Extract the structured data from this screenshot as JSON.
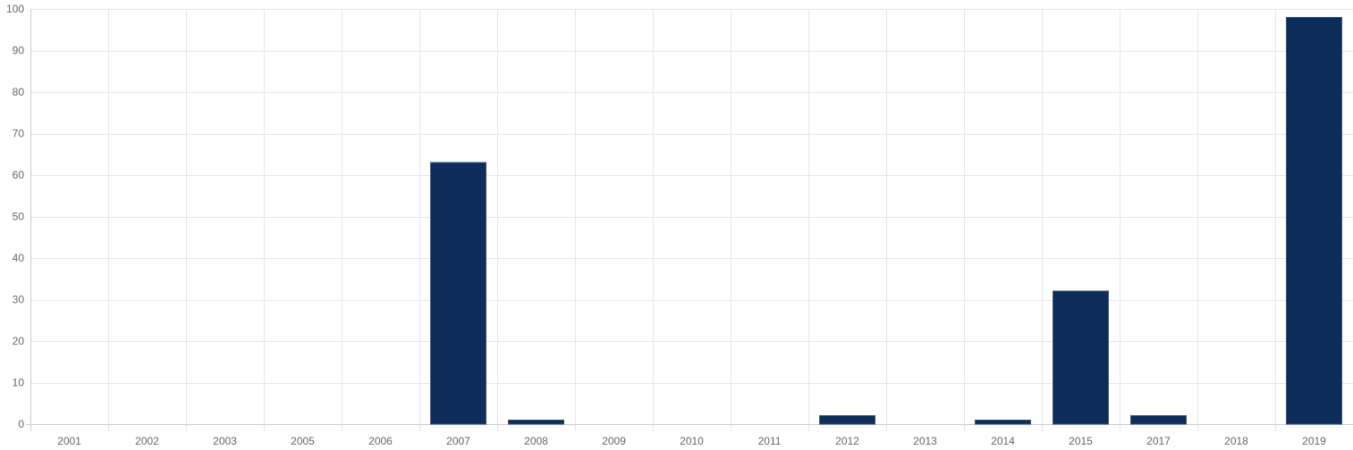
{
  "chart_data": {
    "type": "bar",
    "categories": [
      "2001",
      "2002",
      "2003",
      "2005",
      "2006",
      "2007",
      "2008",
      "2009",
      "2010",
      "2011",
      "2012",
      "2013",
      "2014",
      "2015",
      "2017",
      "2018",
      "2019"
    ],
    "values": [
      0,
      0,
      0,
      0,
      0,
      63,
      1,
      0,
      0,
      0,
      2,
      0,
      1,
      32,
      2,
      0,
      98
    ],
    "ylim": [
      0,
      100
    ],
    "yticks": [
      0,
      10,
      20,
      30,
      40,
      50,
      60,
      70,
      80,
      90,
      100
    ],
    "grid": true,
    "legend": "none",
    "title": "",
    "xlabel": "",
    "ylabel": "",
    "colors": {
      "bar_fill": "#0c2d5a",
      "bar_stroke": "#3a5577"
    }
  }
}
